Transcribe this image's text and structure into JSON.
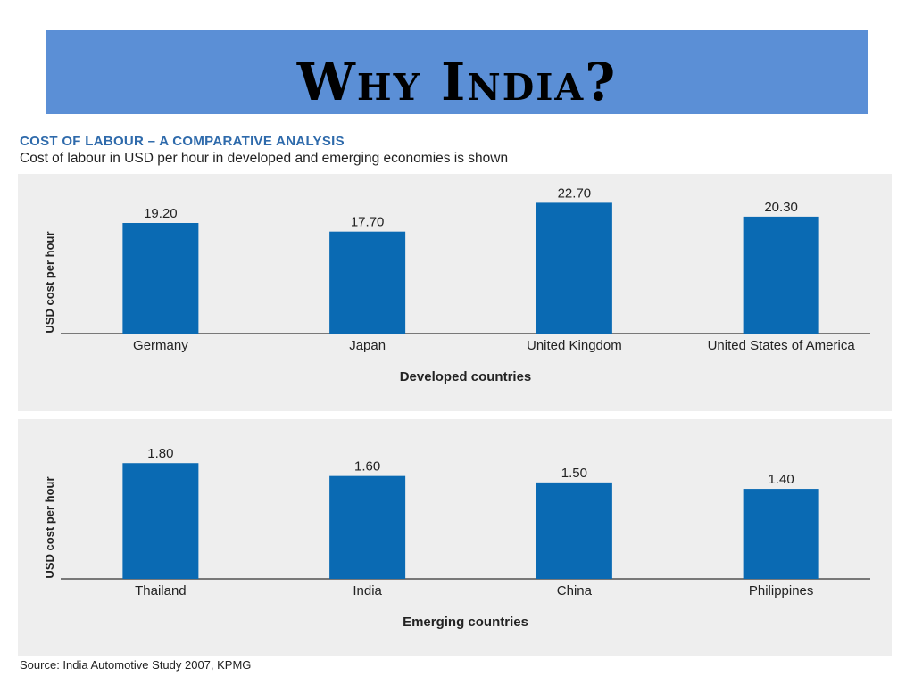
{
  "slide": {
    "title": "Why India?"
  },
  "header": {
    "heading": "COST OF LABOUR – A COMPARATIVE ANALYSIS",
    "subheading": "Cost of labour in USD per hour in developed and emerging economies is shown"
  },
  "source": "Source: India Automotive Study 2007, KPMG",
  "colors": {
    "banner": "#5b8fd6",
    "bar": "#0a6ab3",
    "panel": "#eeeeee",
    "heading": "#2e6aab"
  },
  "chart_data": [
    {
      "type": "bar",
      "categories": [
        "Germany",
        "Japan",
        "United Kingdom",
        "United States of America"
      ],
      "values": [
        19.2,
        17.7,
        22.7,
        20.3
      ],
      "value_labels": [
        "19.20",
        "17.70",
        "22.70",
        "20.30"
      ],
      "xlabel": "Developed countries",
      "ylabel": "USD cost per hour",
      "ylim": [
        0,
        24
      ],
      "grid": false,
      "legend": "none"
    },
    {
      "type": "bar",
      "categories": [
        "Thailand",
        "India",
        "China",
        "Philippines"
      ],
      "values": [
        1.8,
        1.6,
        1.5,
        1.4
      ],
      "value_labels": [
        "1.80",
        "1.60",
        "1.50",
        "1.40"
      ],
      "xlabel": "Emerging countries",
      "ylabel": "USD cost per hour",
      "ylim": [
        0,
        2.15
      ],
      "grid": false,
      "legend": "none"
    }
  ]
}
